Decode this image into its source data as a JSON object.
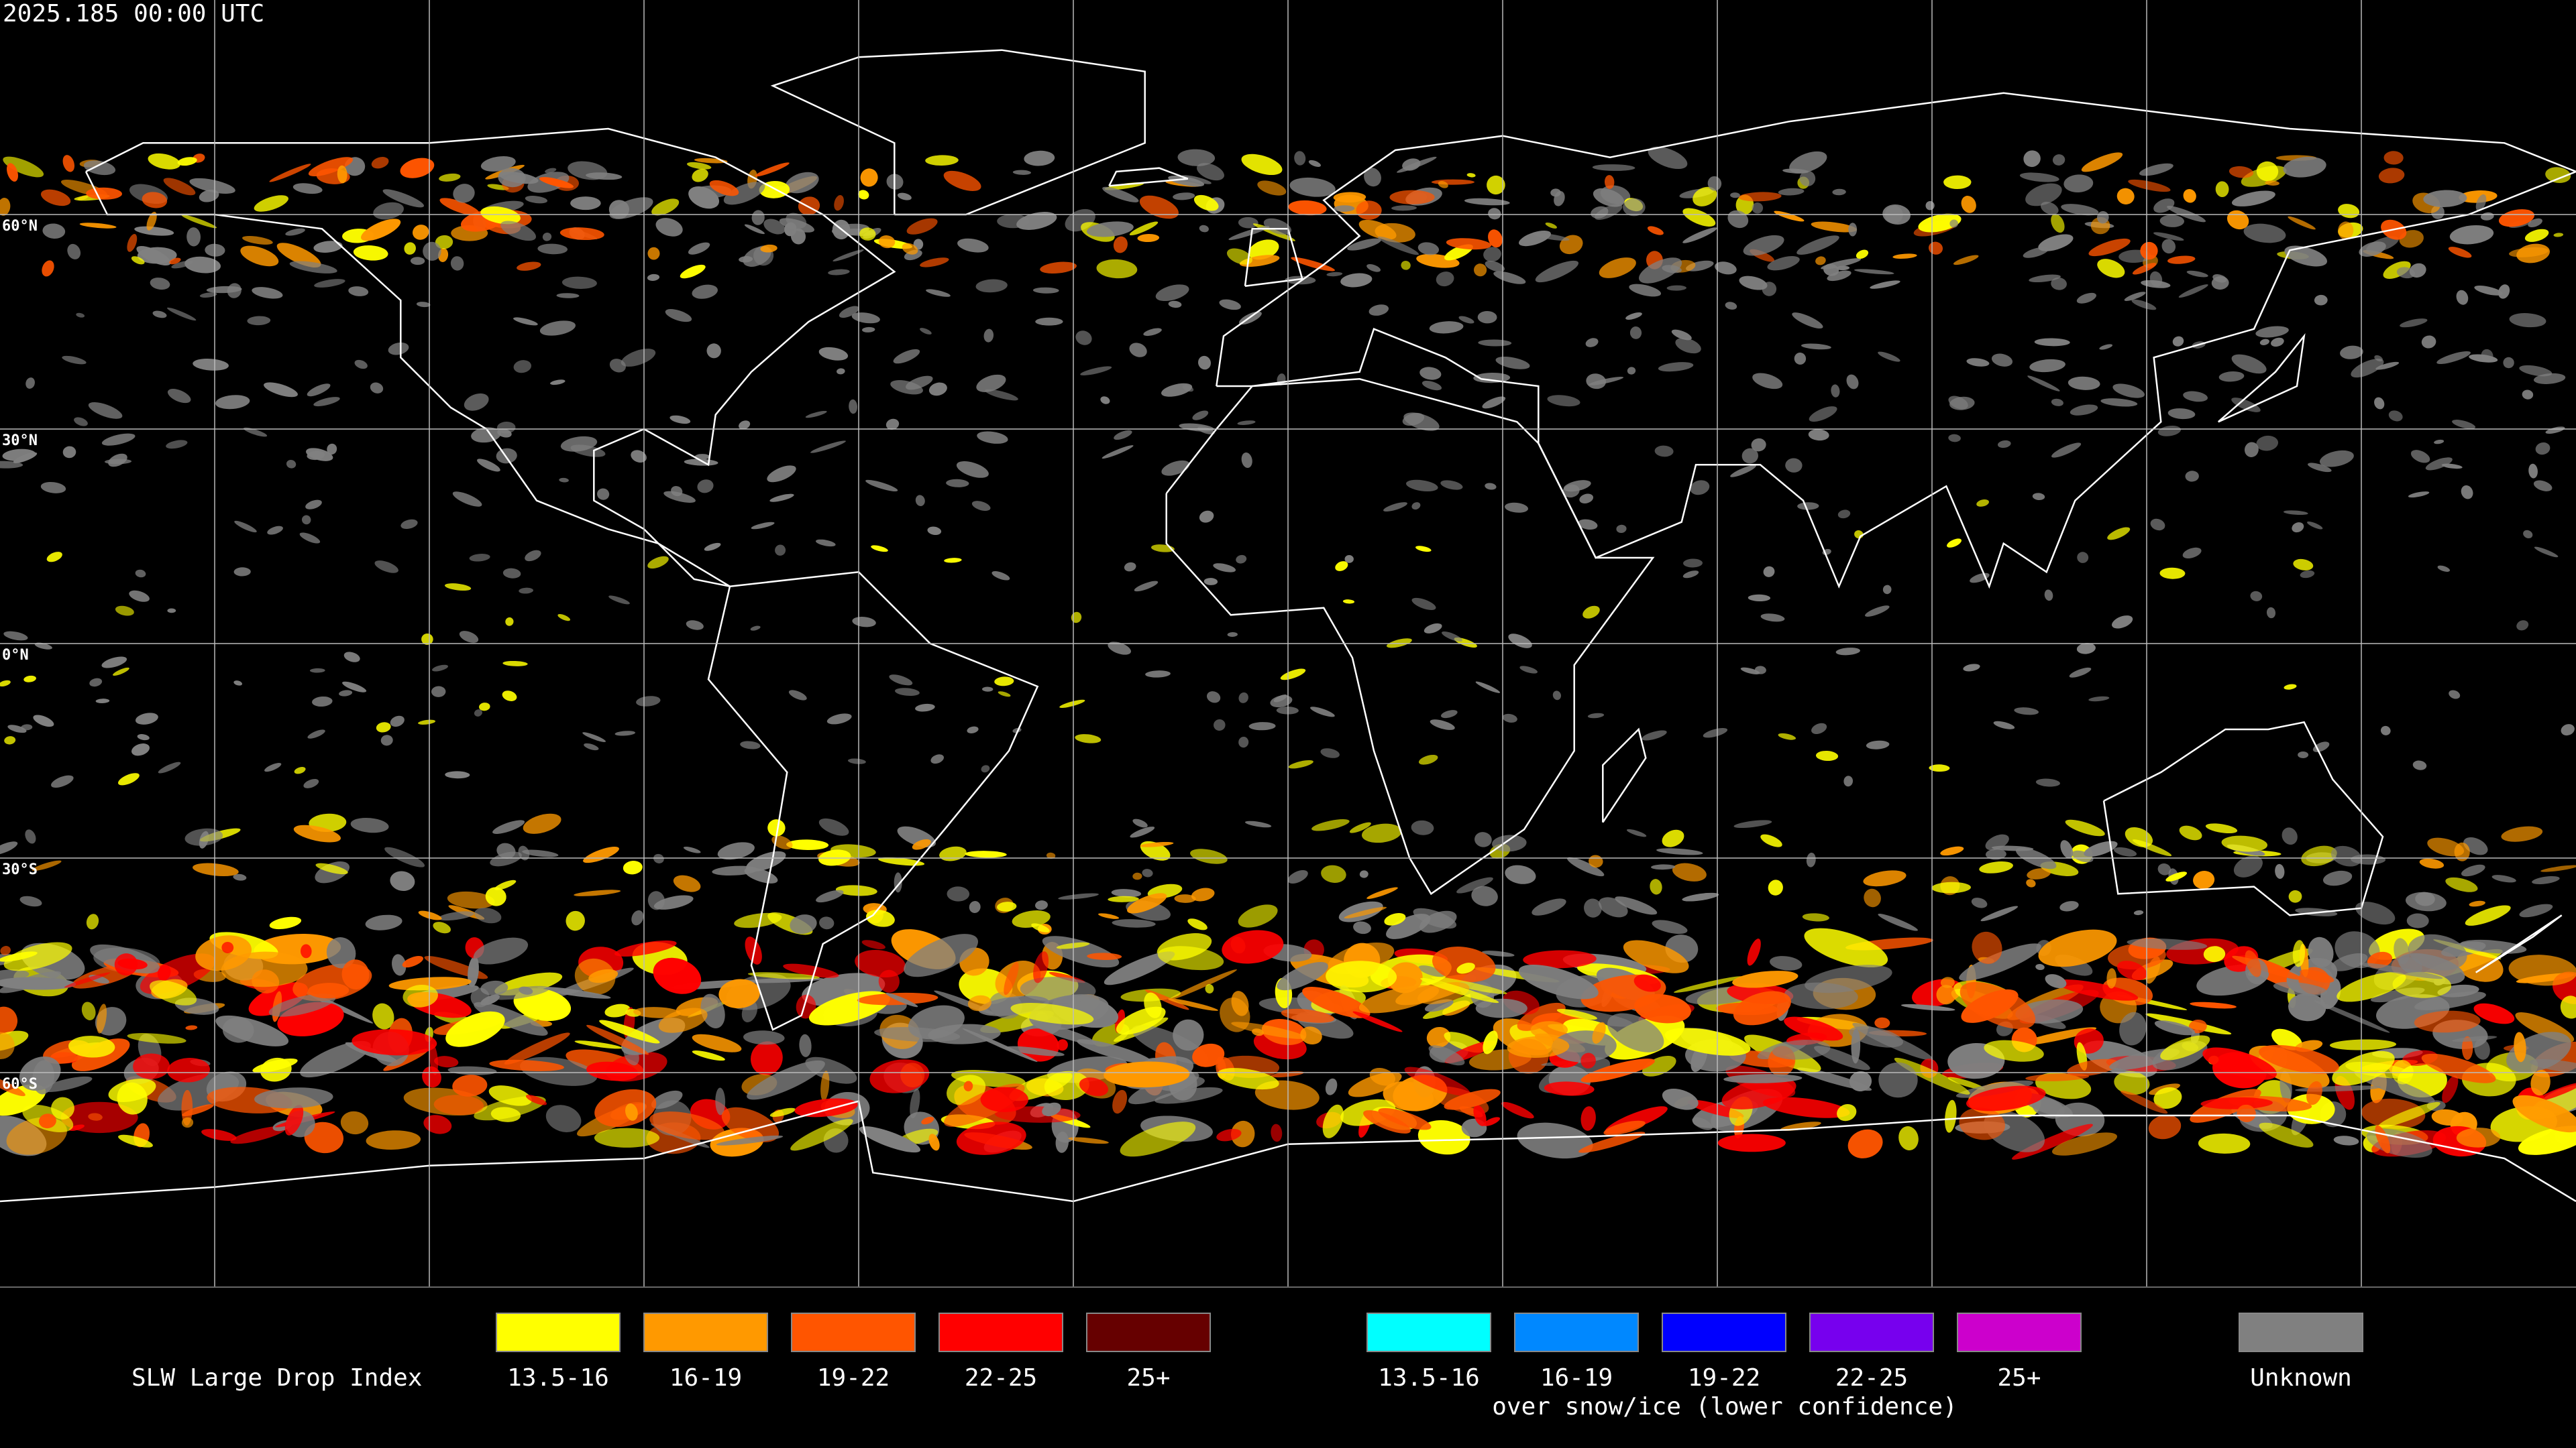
{
  "header": {
    "timestamp": "2025.185 00:00 UTC"
  },
  "map": {
    "latitude_labels": [
      "60°N",
      "30°N",
      "0°N",
      "30°S",
      "60°S"
    ]
  },
  "legend": {
    "title": "SLW Large Drop Index",
    "classes": [
      {
        "label": "13.5-16",
        "color": "#ffff00"
      },
      {
        "label": "16-19",
        "color": "#ff9900"
      },
      {
        "label": "19-22",
        "color": "#ff5500"
      },
      {
        "label": "22-25",
        "color": "#ff0000"
      },
      {
        "label": "25+",
        "color": "#660000"
      }
    ],
    "snow_ice_classes": [
      {
        "label": "13.5-16",
        "color": "#00ffff"
      },
      {
        "label": "16-19",
        "color": "#0088ff"
      },
      {
        "label": "19-22",
        "color": "#0000ff"
      },
      {
        "label": "22-25",
        "color": "#7700ee"
      },
      {
        "label": "25+",
        "color": "#cc00cc"
      }
    ],
    "snow_ice_note": "over snow/ice (lower confidence)",
    "unknown": {
      "label": "Unknown",
      "color": "#808080"
    }
  }
}
